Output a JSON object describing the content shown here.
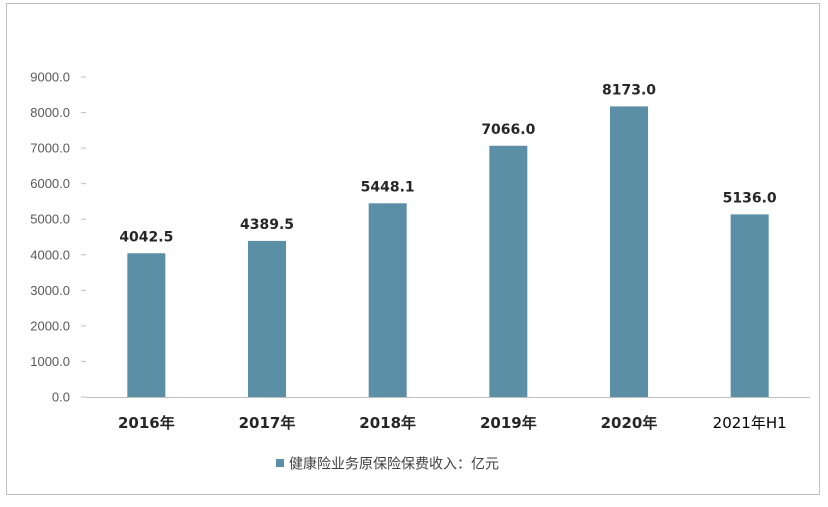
{
  "chart_data": {
    "type": "bar",
    "categories": [
      "2016年",
      "2017年",
      "2018年",
      "2019年",
      "2020年",
      "2021年H1"
    ],
    "series": [
      {
        "name": "健康险业务原保险保费收入：亿元",
        "values": [
          4042.5,
          4389.5,
          5448.1,
          7066.0,
          8173.0,
          5136.0
        ],
        "value_labels": [
          "4042.5",
          "4389.5",
          "5448.1",
          "7066.0",
          "8173.0",
          "5136.0"
        ]
      }
    ],
    "yticks": [
      "0.0",
      "1000.0",
      "2000.0",
      "3000.0",
      "4000.0",
      "5000.0",
      "6000.0",
      "7000.0",
      "8000.0",
      "9000.0"
    ],
    "ylim": [
      0,
      9000
    ],
    "grid": false,
    "legend_position": "bottom",
    "colors": {
      "bar": "#5b8fa6",
      "axis": "#bfbfbf"
    }
  }
}
